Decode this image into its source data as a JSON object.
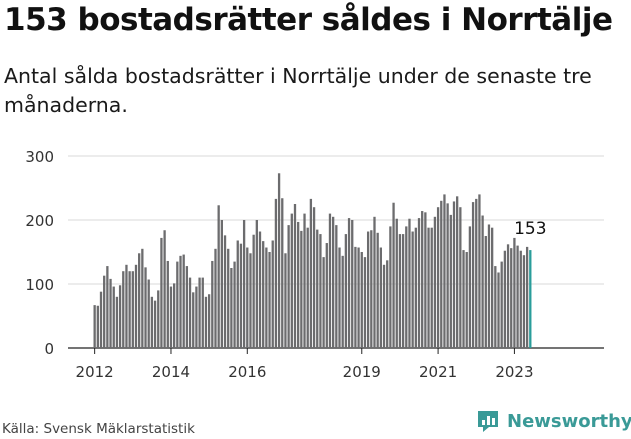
{
  "chart_data": {
    "type": "bar",
    "title": "153 bostadsrätter såldes i Norrtälje",
    "subtitle": "Antal sålda bostadsrätter i Norrtälje under de senaste tre månaderna.",
    "source": "Källa: Svensk Mäklarstatistik",
    "start_year": 2012,
    "xticks": [
      "2012",
      "2014",
      "2016",
      "2019",
      "2021",
      "2023"
    ],
    "xtick_years": [
      2012,
      2014,
      2016,
      2019,
      2021,
      2023
    ],
    "yticks": [
      "300",
      "200",
      "100",
      "0"
    ],
    "ytick_values": [
      300,
      200,
      100,
      0
    ],
    "ylim": [
      0,
      300
    ],
    "last_label": "153",
    "bar_color": "#6c6c6e",
    "highlight_color": "#2a9d9b",
    "values": [
      67,
      66,
      88,
      113,
      128,
      108,
      96,
      80,
      98,
      120,
      130,
      120,
      120,
      130,
      148,
      155,
      126,
      107,
      80,
      74,
      90,
      172,
      184,
      136,
      96,
      101,
      135,
      144,
      146,
      128,
      110,
      87,
      96,
      110,
      110,
      80,
      84,
      136,
      155,
      223,
      200,
      176,
      155,
      125,
      135,
      168,
      163,
      200,
      157,
      148,
      177,
      200,
      182,
      167,
      157,
      150,
      168,
      233,
      273,
      234,
      148,
      192,
      210,
      225,
      197,
      183,
      210,
      188,
      233,
      220,
      185,
      178,
      142,
      164,
      210,
      205,
      192,
      157,
      144,
      178,
      203,
      200,
      158,
      157,
      150,
      142,
      182,
      184,
      205,
      180,
      157,
      130,
      137,
      190,
      227,
      202,
      178,
      178,
      190,
      202,
      182,
      188,
      203,
      214,
      212,
      188,
      188,
      205,
      220,
      230,
      240,
      226,
      208,
      229,
      237,
      220,
      153,
      150,
      190,
      228,
      233,
      240,
      207,
      175,
      193,
      188,
      128,
      118,
      135,
      152,
      162,
      156,
      172,
      160,
      152,
      145,
      158,
      153
    ]
  },
  "footer": {
    "source": "Källa: Svensk Mäklarstatistik",
    "brand": "Newsworthy",
    "logo_icon": "newsworthy-logo-icon",
    "brand_color": "#3a9a97"
  }
}
